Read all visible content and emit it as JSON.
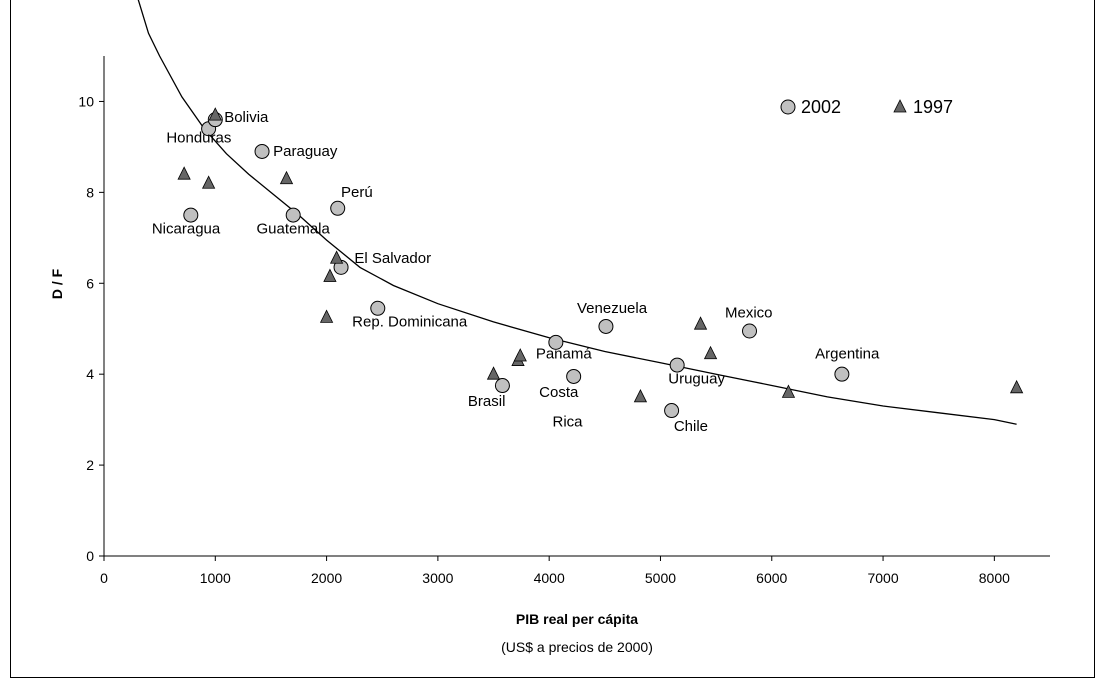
{
  "chart_data": {
    "type": "scatter",
    "title": "",
    "xlabel": "PIB real per cápita",
    "xlabel_sub": "(US$ a precios de 2000)",
    "ylabel": "D / F",
    "xlim": [
      0,
      8500
    ],
    "ylim": [
      0,
      11
    ],
    "x_ticks": [
      0,
      1000,
      2000,
      3000,
      4000,
      5000,
      6000,
      7000,
      8000
    ],
    "y_ticks": [
      0,
      2,
      4,
      6,
      8,
      10
    ],
    "grid": false,
    "legend_position": "top-right",
    "colors": {
      "circle_fill": "#c0c0c0",
      "triangle_fill": "#666666",
      "stroke": "#000000"
    },
    "series": [
      {
        "name": "2002",
        "marker": "circle",
        "points": [
          {
            "x": 780,
            "y": 7.5
          },
          {
            "x": 940,
            "y": 9.4
          },
          {
            "x": 1000,
            "y": 9.6
          },
          {
            "x": 1420,
            "y": 8.9
          },
          {
            "x": 1700,
            "y": 7.5
          },
          {
            "x": 2100,
            "y": 7.65
          },
          {
            "x": 2130,
            "y": 6.35
          },
          {
            "x": 2460,
            "y": 5.45
          },
          {
            "x": 3580,
            "y": 3.75
          },
          {
            "x": 4060,
            "y": 4.7
          },
          {
            "x": 4220,
            "y": 3.95
          },
          {
            "x": 4510,
            "y": 5.05
          },
          {
            "x": 5100,
            "y": 3.2
          },
          {
            "x": 5150,
            "y": 4.2
          },
          {
            "x": 5800,
            "y": 4.95
          },
          {
            "x": 6630,
            "y": 4.0
          }
        ]
      },
      {
        "name": "1997",
        "marker": "triangle",
        "points": [
          {
            "x": 720,
            "y": 8.4
          },
          {
            "x": 940,
            "y": 8.2
          },
          {
            "x": 1000,
            "y": 9.7
          },
          {
            "x": 1640,
            "y": 8.3
          },
          {
            "x": 2000,
            "y": 5.25
          },
          {
            "x": 2030,
            "y": 6.15
          },
          {
            "x": 2090,
            "y": 6.55
          },
          {
            "x": 3500,
            "y": 4.0
          },
          {
            "x": 3720,
            "y": 4.3
          },
          {
            "x": 3740,
            "y": 4.4
          },
          {
            "x": 4820,
            "y": 3.5
          },
          {
            "x": 5360,
            "y": 5.1
          },
          {
            "x": 5450,
            "y": 4.45
          },
          {
            "x": 6150,
            "y": 3.6
          },
          {
            "x": 8200,
            "y": 3.7
          }
        ]
      }
    ],
    "trend_curve": [
      {
        "x": 300,
        "y": 12.3
      },
      {
        "x": 400,
        "y": 11.5
      },
      {
        "x": 500,
        "y": 11.0
      },
      {
        "x": 700,
        "y": 10.1
      },
      {
        "x": 900,
        "y": 9.4
      },
      {
        "x": 1100,
        "y": 8.85
      },
      {
        "x": 1300,
        "y": 8.4
      },
      {
        "x": 1500,
        "y": 8.0
      },
      {
        "x": 1750,
        "y": 7.5
      },
      {
        "x": 2000,
        "y": 6.95
      },
      {
        "x": 2300,
        "y": 6.35
      },
      {
        "x": 2600,
        "y": 5.95
      },
      {
        "x": 3000,
        "y": 5.55
      },
      {
        "x": 3500,
        "y": 5.15
      },
      {
        "x": 4000,
        "y": 4.8
      },
      {
        "x": 4500,
        "y": 4.5
      },
      {
        "x": 5000,
        "y": 4.25
      },
      {
        "x": 5500,
        "y": 4.0
      },
      {
        "x": 6000,
        "y": 3.75
      },
      {
        "x": 6500,
        "y": 3.5
      },
      {
        "x": 7000,
        "y": 3.3
      },
      {
        "x": 7500,
        "y": 3.15
      },
      {
        "x": 8000,
        "y": 3.0
      },
      {
        "x": 8200,
        "y": 2.9
      }
    ],
    "annotations": [
      {
        "text": "Bolivia",
        "x": 1080,
        "y": 9.55
      },
      {
        "text": "Honduras",
        "x": 560,
        "y": 9.1
      },
      {
        "text": "Paraguay",
        "x": 1520,
        "y": 8.8
      },
      {
        "text": "Perú",
        "x": 2130,
        "y": 7.9
      },
      {
        "text": "Nicaragua",
        "x": 430,
        "y": 7.1
      },
      {
        "text": "Guatemala",
        "x": 1370,
        "y": 7.1
      },
      {
        "text": "El Salvador",
        "x": 2250,
        "y": 6.45
      },
      {
        "text": "Rep. Dominicana",
        "x": 2230,
        "y": 5.05
      },
      {
        "text": "Venezuela",
        "x": 4250,
        "y": 5.35
      },
      {
        "text": "Mexico",
        "x": 5580,
        "y": 5.25
      },
      {
        "text": "Panamá",
        "x": 3880,
        "y": 4.35
      },
      {
        "text": "Argentina",
        "x": 6390,
        "y": 4.35
      },
      {
        "text": "Uruguay",
        "x": 5070,
        "y": 3.8
      },
      {
        "text": "Brasil",
        "x": 3270,
        "y": 3.3
      },
      {
        "text": "Costa",
        "x": 3910,
        "y": 3.5
      },
      {
        "text": "Rica",
        "x": 4030,
        "y": 2.85
      },
      {
        "text": "Chile",
        "x": 5120,
        "y": 2.75
      }
    ]
  }
}
